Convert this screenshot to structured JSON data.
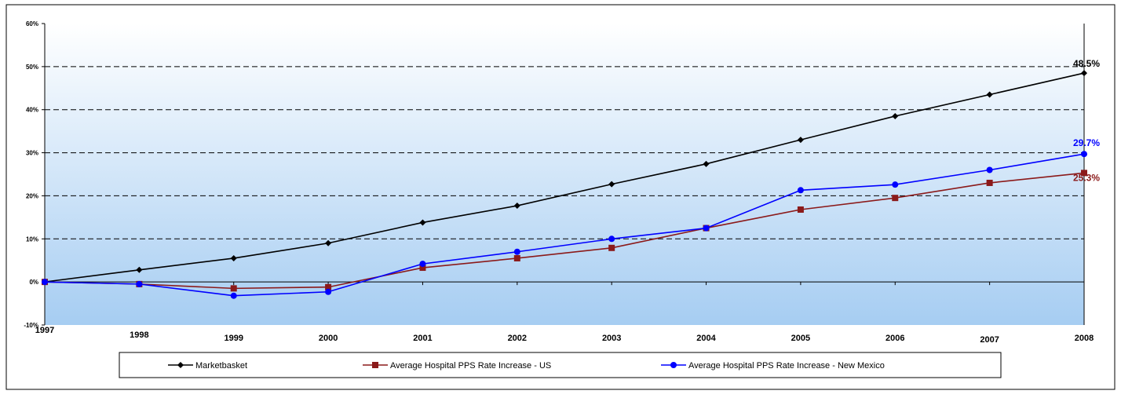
{
  "chart_data": {
    "type": "line",
    "title": "",
    "xlabel": "",
    "ylabel": "",
    "x": [
      "1997",
      "1998",
      "1999",
      "2000",
      "2001",
      "2002",
      "2003",
      "2004",
      "2005",
      "2006",
      "2007",
      "2008"
    ],
    "ylim": [
      -10,
      60
    ],
    "yticks": [
      -10,
      0,
      10,
      20,
      30,
      40,
      50,
      60
    ],
    "ytick_labels": [
      "-10%",
      "0%",
      "10%",
      "20%",
      "30%",
      "40%",
      "50%",
      "60%"
    ],
    "grid": "horizontal dashed",
    "legend_position": "bottom",
    "background": "gradient white to light blue",
    "series": [
      {
        "name": "Marketbasket",
        "color": "#000000",
        "marker": "diamond",
        "values": [
          0,
          2.8,
          5.5,
          9.0,
          13.8,
          17.7,
          22.7,
          27.4,
          33.0,
          38.5,
          43.5,
          48.5
        ],
        "end_label": "48.5%",
        "end_label_color": "#000000"
      },
      {
        "name": "Average Hospital PPS Rate Increase - US",
        "color": "#8b1a1a",
        "marker": "square",
        "values": [
          0,
          -0.5,
          -1.5,
          -1.2,
          3.3,
          5.5,
          7.9,
          12.5,
          16.8,
          19.5,
          23.0,
          25.3
        ],
        "end_label": "25.3%",
        "end_label_color": "#8b1a1a"
      },
      {
        "name": "Average Hospital PPS Rate Increase - New Mexico",
        "color": "#0000ff",
        "marker": "circle",
        "values": [
          0,
          -0.5,
          -3.2,
          -2.3,
          4.2,
          7.0,
          10.0,
          12.5,
          21.3,
          22.6,
          26.0,
          29.7
        ],
        "end_label": "29.7%",
        "end_label_color": "#0000ff"
      }
    ]
  }
}
